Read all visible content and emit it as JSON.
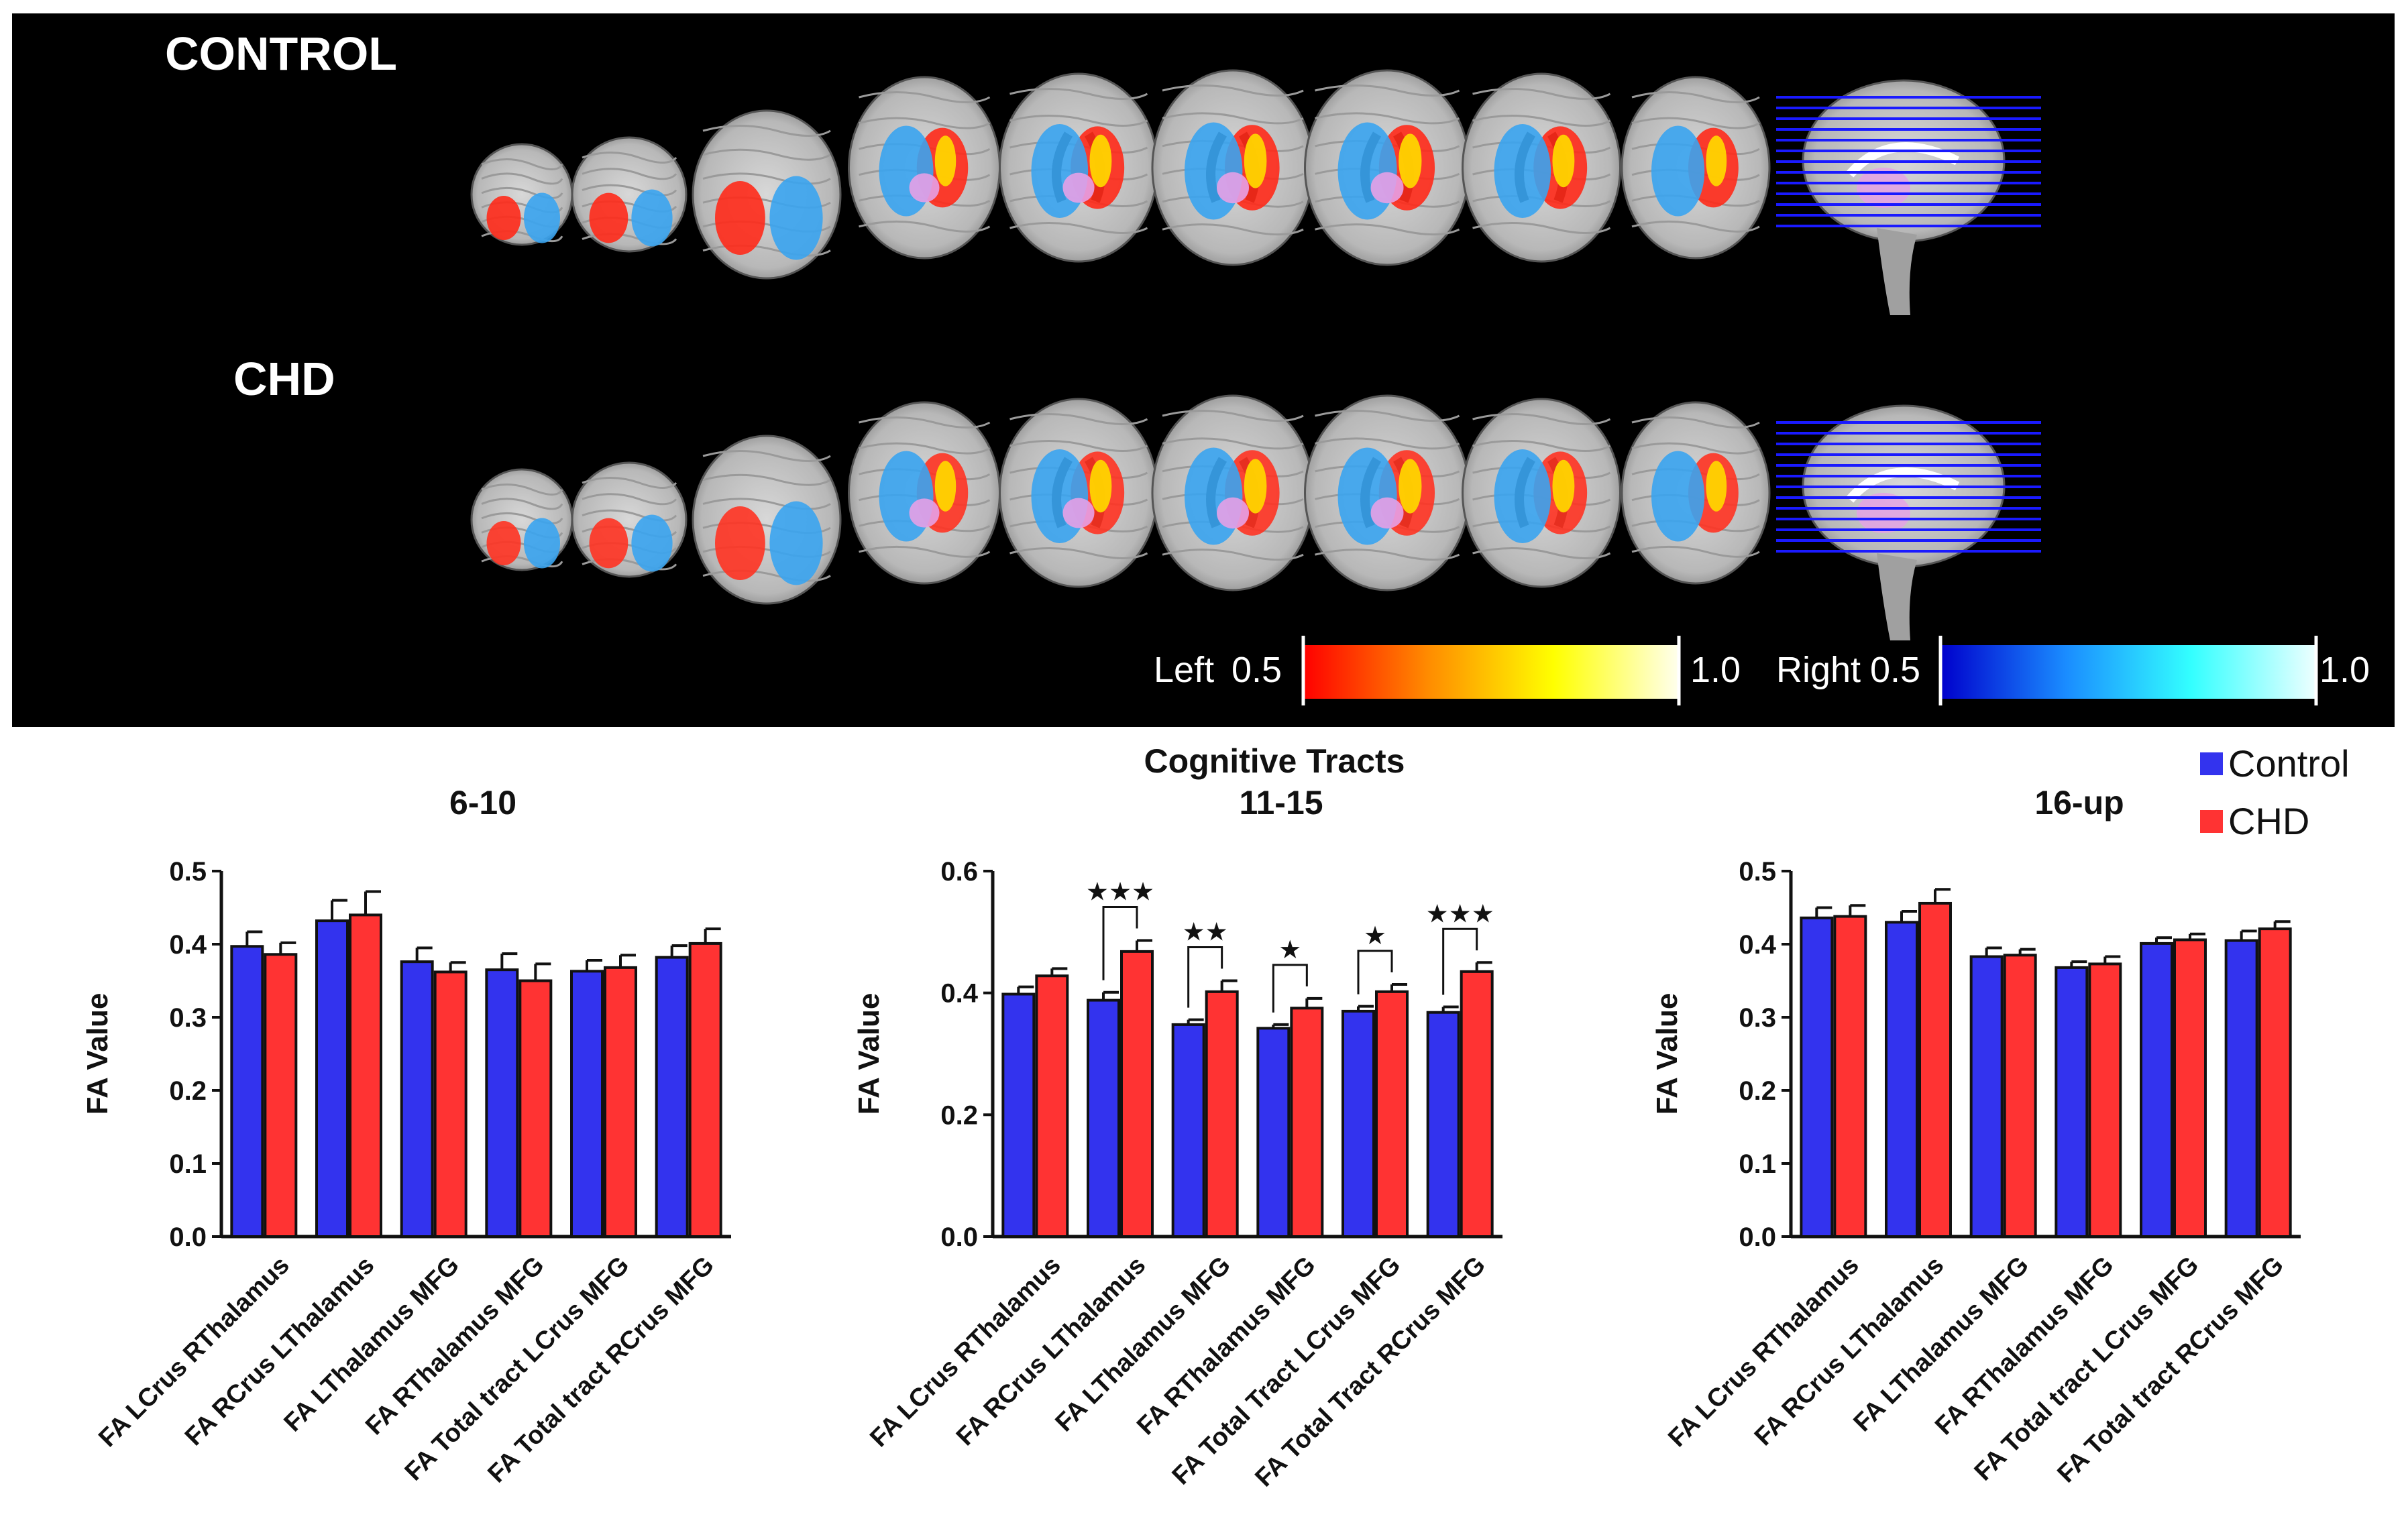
{
  "images": {
    "row_labels": [
      "CONTROL",
      "CHD"
    ],
    "colorbars": [
      {
        "label": "Left",
        "min": "0.5",
        "max": "1.0",
        "colors": [
          "#ff0000",
          "#ff8c00",
          "#ffff00",
          "#ffffee"
        ]
      },
      {
        "label": "Right",
        "min": "0.5",
        "max": "1.0",
        "colors": [
          "#0000cc",
          "#1a8cff",
          "#33ffff",
          "#eeffff"
        ]
      }
    ]
  },
  "legend": [
    {
      "label": "Control",
      "color": "#3333ee"
    },
    {
      "label": "CHD",
      "color": "#ff3333"
    }
  ],
  "main_title": "Cognitive Tracts",
  "chart_data": [
    {
      "type": "bar",
      "title": "6-10",
      "ylabel": "FA Value",
      "ylim": [
        0,
        0.5
      ],
      "yticks": [
        "0.0",
        "0.1",
        "0.2",
        "0.3",
        "0.4",
        "0.5"
      ],
      "categories": [
        "FA LCrus RThalamus",
        "FA RCrus LThalamus",
        "FA LThalamus MFG",
        "FA RThalamus MFG",
        "FA Total tract LCrus MFG",
        "FA Total tract RCrus MFG"
      ],
      "series": [
        {
          "name": "Control",
          "values": [
            0.397,
            0.432,
            0.376,
            0.365,
            0.363,
            0.382
          ],
          "errors": [
            0.02,
            0.028,
            0.019,
            0.022,
            0.015,
            0.016
          ]
        },
        {
          "name": "CHD",
          "values": [
            0.386,
            0.44,
            0.362,
            0.35,
            0.368,
            0.401
          ],
          "errors": [
            0.016,
            0.032,
            0.013,
            0.023,
            0.017,
            0.02
          ]
        }
      ],
      "significance": []
    },
    {
      "type": "bar",
      "title": "11-15",
      "ylabel": "FA Value",
      "ylim": [
        0,
        0.6
      ],
      "yticks": [
        "0.0",
        "0.2",
        "0.4",
        "0.6"
      ],
      "categories": [
        "FA LCrus RThalamus",
        "FA RCrus LThalamus",
        "FA LThalamus MFG",
        "FA RThalamus MFG",
        "FA Total Tract LCrus MFG",
        "FA Total Tract RCrus MFG"
      ],
      "series": [
        {
          "name": "Control",
          "values": [
            0.398,
            0.388,
            0.348,
            0.342,
            0.37,
            0.368
          ],
          "errors": [
            0.012,
            0.013,
            0.008,
            0.006,
            0.008,
            0.009
          ]
        },
        {
          "name": "CHD",
          "values": [
            0.428,
            0.468,
            0.402,
            0.375,
            0.402,
            0.435
          ],
          "errors": [
            0.012,
            0.018,
            0.018,
            0.016,
            0.012,
            0.015
          ]
        }
      ],
      "significance": [
        {
          "index": 1,
          "stars": "★★★"
        },
        {
          "index": 2,
          "stars": "★★"
        },
        {
          "index": 3,
          "stars": "★"
        },
        {
          "index": 4,
          "stars": "★"
        },
        {
          "index": 5,
          "stars": "★★★"
        }
      ]
    },
    {
      "type": "bar",
      "title": "16-up",
      "ylabel": "FA Value",
      "ylim": [
        0,
        0.5
      ],
      "yticks": [
        "0.0",
        "0.1",
        "0.2",
        "0.3",
        "0.4",
        "0.5"
      ],
      "categories": [
        "FA LCrus RThalamus",
        "FA RCrus LThalamus",
        "FA LThalamus MFG",
        "FA RThalamus MFG",
        "FA Total tract LCrus MFG",
        "FA Total tract RCrus MFG"
      ],
      "series": [
        {
          "name": "Control",
          "values": [
            0.436,
            0.43,
            0.383,
            0.368,
            0.401,
            0.405
          ],
          "errors": [
            0.014,
            0.015,
            0.012,
            0.008,
            0.008,
            0.013
          ]
        },
        {
          "name": "CHD",
          "values": [
            0.438,
            0.456,
            0.385,
            0.373,
            0.406,
            0.421
          ],
          "errors": [
            0.015,
            0.019,
            0.008,
            0.01,
            0.008,
            0.01
          ]
        }
      ],
      "significance": []
    }
  ]
}
